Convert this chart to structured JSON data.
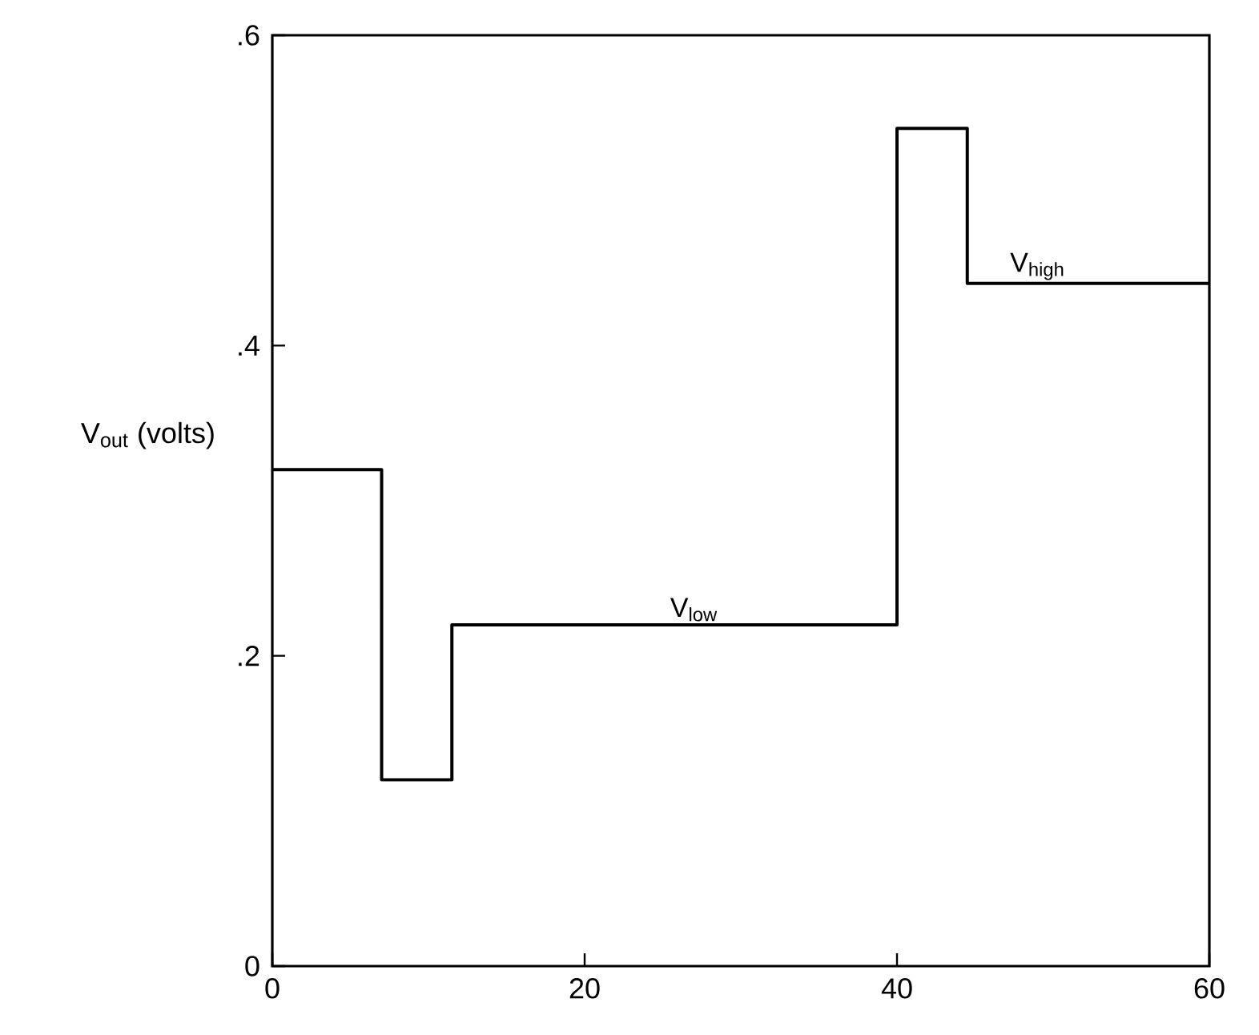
{
  "chart_data": {
    "type": "step",
    "x": [
      0,
      7,
      11.5,
      40,
      44.5,
      60
    ],
    "values": [
      0.32,
      0.12,
      0.22,
      0.54,
      0.44,
      0.44
    ],
    "color": "#000000",
    "ylabel": "V$_{out}$ (volts)",
    "annotations": [
      {
        "text": "V$_{low}$",
        "x": 27,
        "y": 0.22
      },
      {
        "text": "V$_{high}$",
        "x": 49,
        "y": 0.44
      }
    ],
    "xlim": [
      0,
      60
    ],
    "ylim": [
      0,
      0.6
    ],
    "xticks": [
      0,
      20,
      40,
      60
    ],
    "yticks": [
      0,
      {
        "value": 0.2,
        "label": ".2"
      },
      {
        "value": 0.4,
        "label": ".4"
      },
      {
        "value": 0.6,
        "label": ".6"
      }
    ],
    "marker": "none",
    "line_style": "solid"
  }
}
